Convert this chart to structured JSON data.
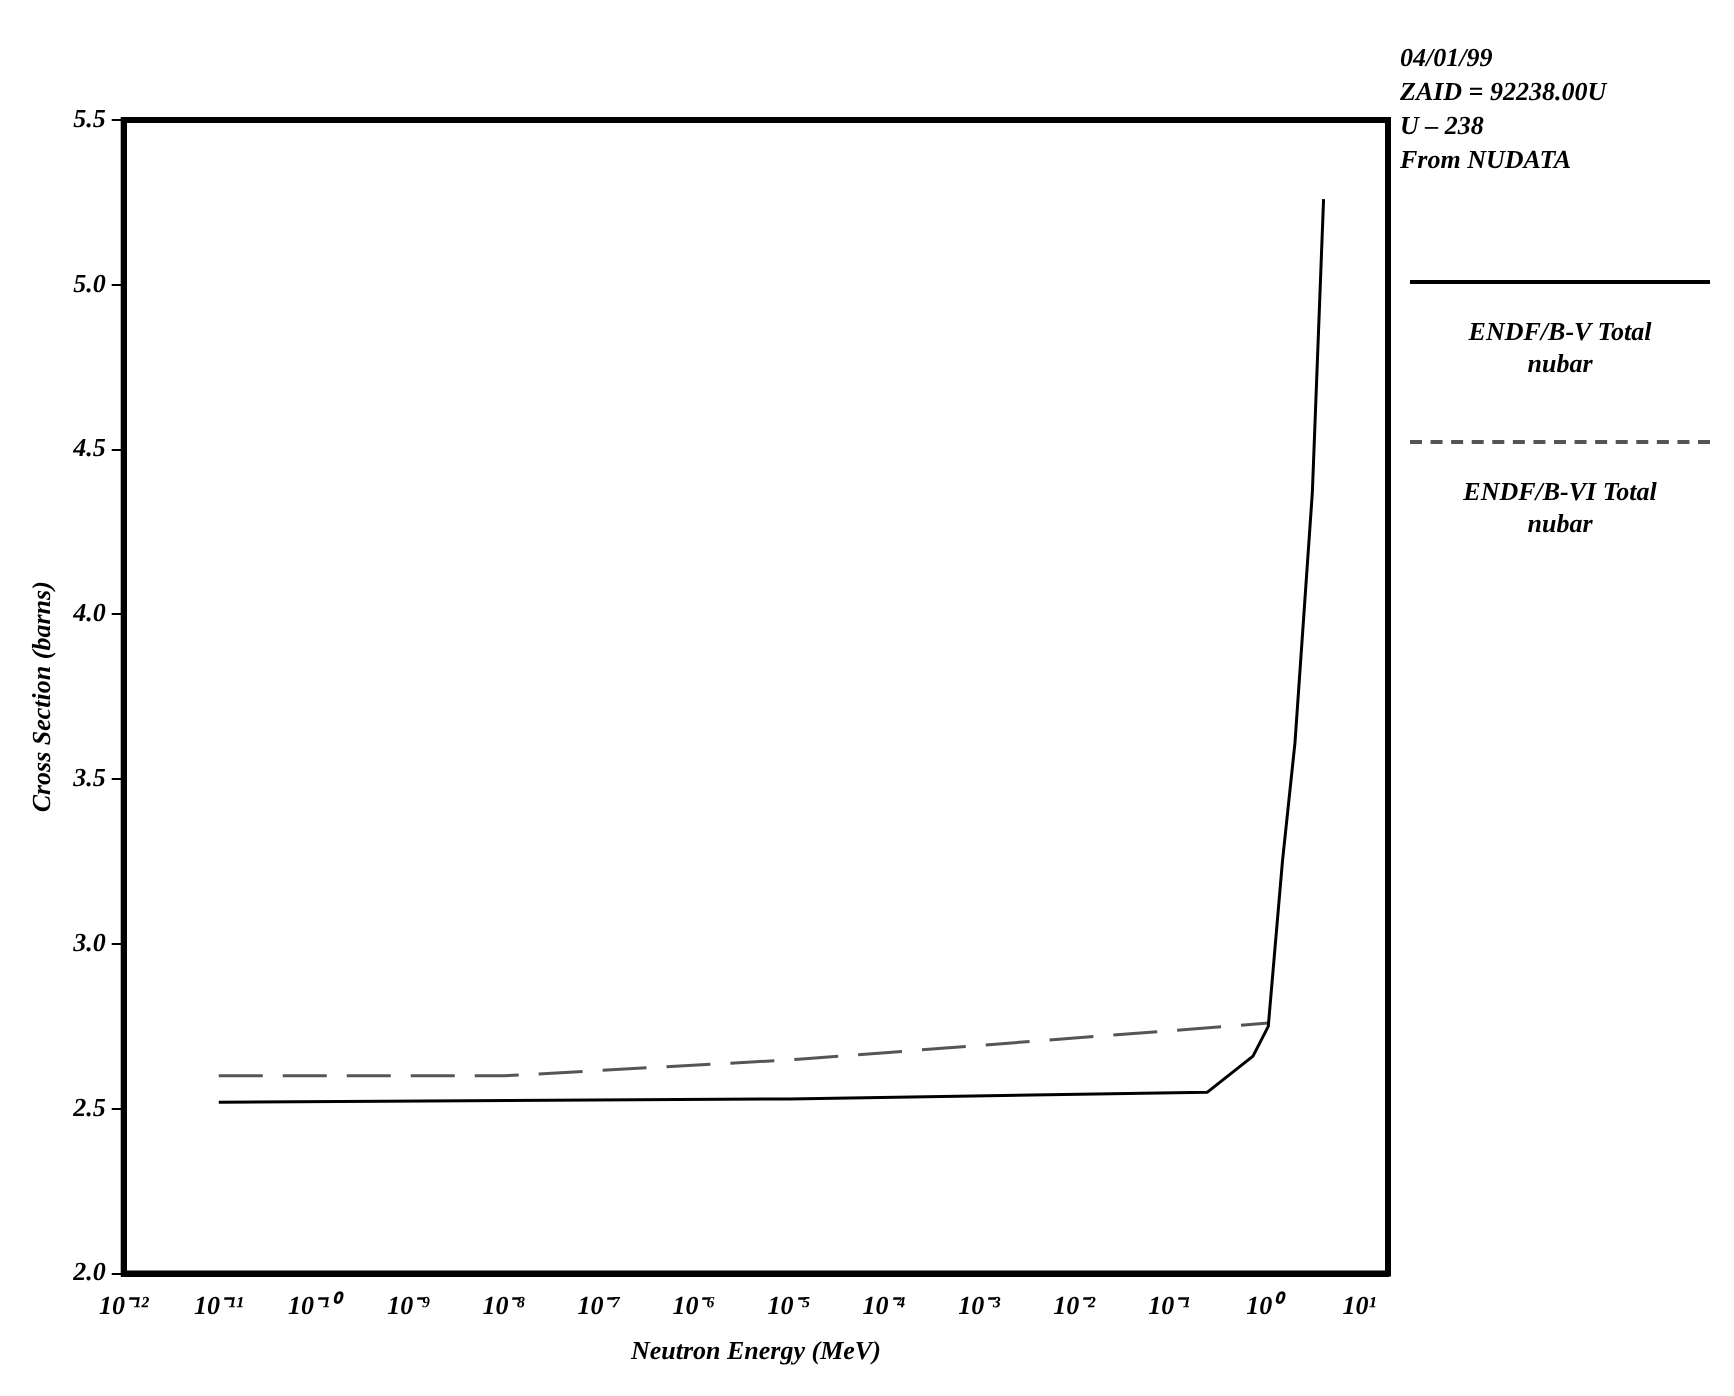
{
  "chart_data": {
    "type": "line",
    "xlabel": "Neutron Energy (MeV)",
    "ylabel": "Cross Section (barns)",
    "annotations": [
      "04/01/99",
      "ZAID = 92238.00U",
      "U – 238",
      "From NUDATA"
    ],
    "log": "x",
    "xlim": [
      1e-12,
      20
    ],
    "ylim": [
      2,
      5.5
    ],
    "xticks": [
      {
        "value": 1e-12,
        "label": "10⁻¹²"
      },
      {
        "value": 1e-11,
        "label": "10⁻¹¹"
      },
      {
        "value": 1e-10,
        "label": "10⁻¹⁰"
      },
      {
        "value": 1e-09,
        "label": "10⁻⁹"
      },
      {
        "value": 1e-08,
        "label": "10⁻⁸"
      },
      {
        "value": 1e-07,
        "label": "10⁻⁷"
      },
      {
        "value": 1e-06,
        "label": "10⁻⁶"
      },
      {
        "value": 1e-05,
        "label": "10⁻⁵"
      },
      {
        "value": 0.0001,
        "label": "10⁻⁴"
      },
      {
        "value": 0.001,
        "label": "10⁻³"
      },
      {
        "value": 0.01,
        "label": "10⁻²"
      },
      {
        "value": 0.1,
        "label": "10⁻¹"
      },
      {
        "value": 1,
        "label": "10⁰"
      },
      {
        "value": 10,
        "label": "10¹"
      }
    ],
    "yticks": [
      {
        "value": 2,
        "label": "2.0"
      },
      {
        "value": 2.5,
        "label": "2.5"
      },
      {
        "value": 3,
        "label": "3.0"
      },
      {
        "value": 3.5,
        "label": "3.5"
      },
      {
        "value": 4,
        "label": "4.0"
      },
      {
        "value": 4.5,
        "label": "4.5"
      },
      {
        "value": 5,
        "label": "5.0"
      },
      {
        "value": 5.5,
        "label": "5.5"
      }
    ],
    "grid": false,
    "legend": "right",
    "marker": "none",
    "series": [
      {
        "name": "ENDF/B-V Total nubar",
        "color": "#000000",
        "line_style": "solid",
        "x": [
          1e-11,
          1e-05,
          0.25,
          0.76,
          1.1,
          1.55,
          2.1,
          3.2,
          4.2
        ],
        "values": [
          2.52,
          2.53,
          2.55,
          2.66,
          2.75,
          3.25,
          3.61,
          4.37,
          5.26
        ]
      },
      {
        "name": "ENDF/B-VI Total nubar",
        "color": "#555555",
        "line_style": "dashed",
        "x": [
          1e-11,
          1e-08,
          1.26e-05,
          1.1
        ],
        "values": [
          2.6,
          2.6,
          2.65,
          2.76
        ]
      }
    ]
  }
}
